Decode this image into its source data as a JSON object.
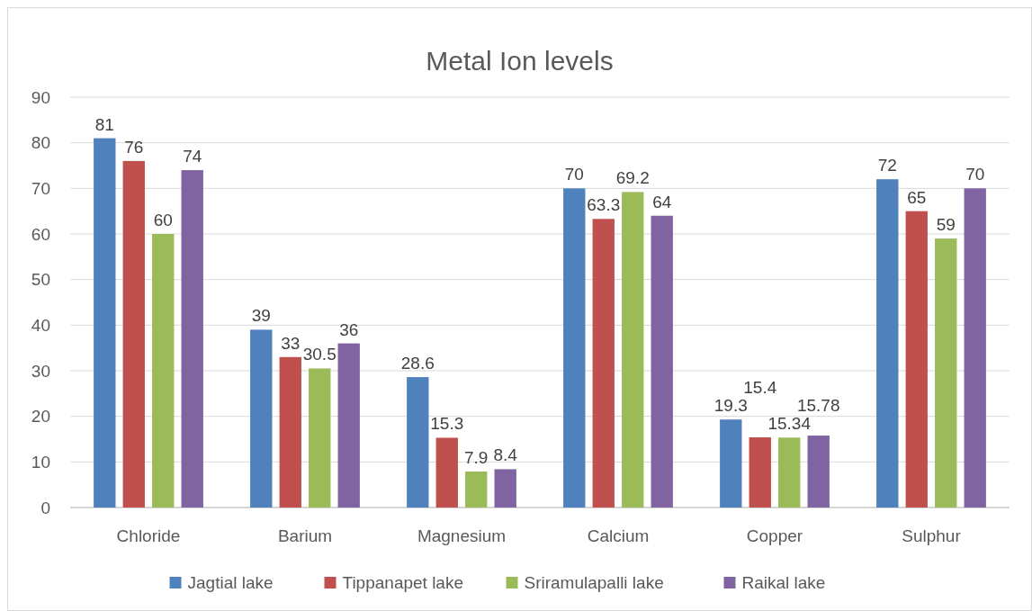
{
  "chart_data": {
    "type": "bar",
    "title": "Metal Ion levels",
    "categories": [
      "Chloride",
      "Barium",
      "Magnesium",
      "Calcium",
      "Copper",
      "Sulphur"
    ],
    "series": [
      {
        "name": "Jagtial lake",
        "color": "#4f81bd",
        "values": [
          81,
          39,
          28.6,
          70,
          19.3,
          72
        ]
      },
      {
        "name": "Tippanapet lake",
        "color": "#c0504d",
        "values": [
          76,
          33,
          15.3,
          63.3,
          15.4,
          65
        ]
      },
      {
        "name": "Sriramulapalli lake",
        "color": "#9bbb59",
        "values": [
          60,
          30.5,
          7.9,
          69.2,
          15.34,
          59
        ]
      },
      {
        "name": "Raikal lake",
        "color": "#8064a2",
        "values": [
          74,
          36,
          8.4,
          64,
          15.78,
          70
        ]
      }
    ],
    "ylim": [
      0,
      90
    ],
    "yticks": [
      0,
      10,
      20,
      30,
      40,
      50,
      60,
      70,
      80,
      90
    ],
    "grid": "y",
    "legend": "bottom",
    "data_labels": true
  }
}
